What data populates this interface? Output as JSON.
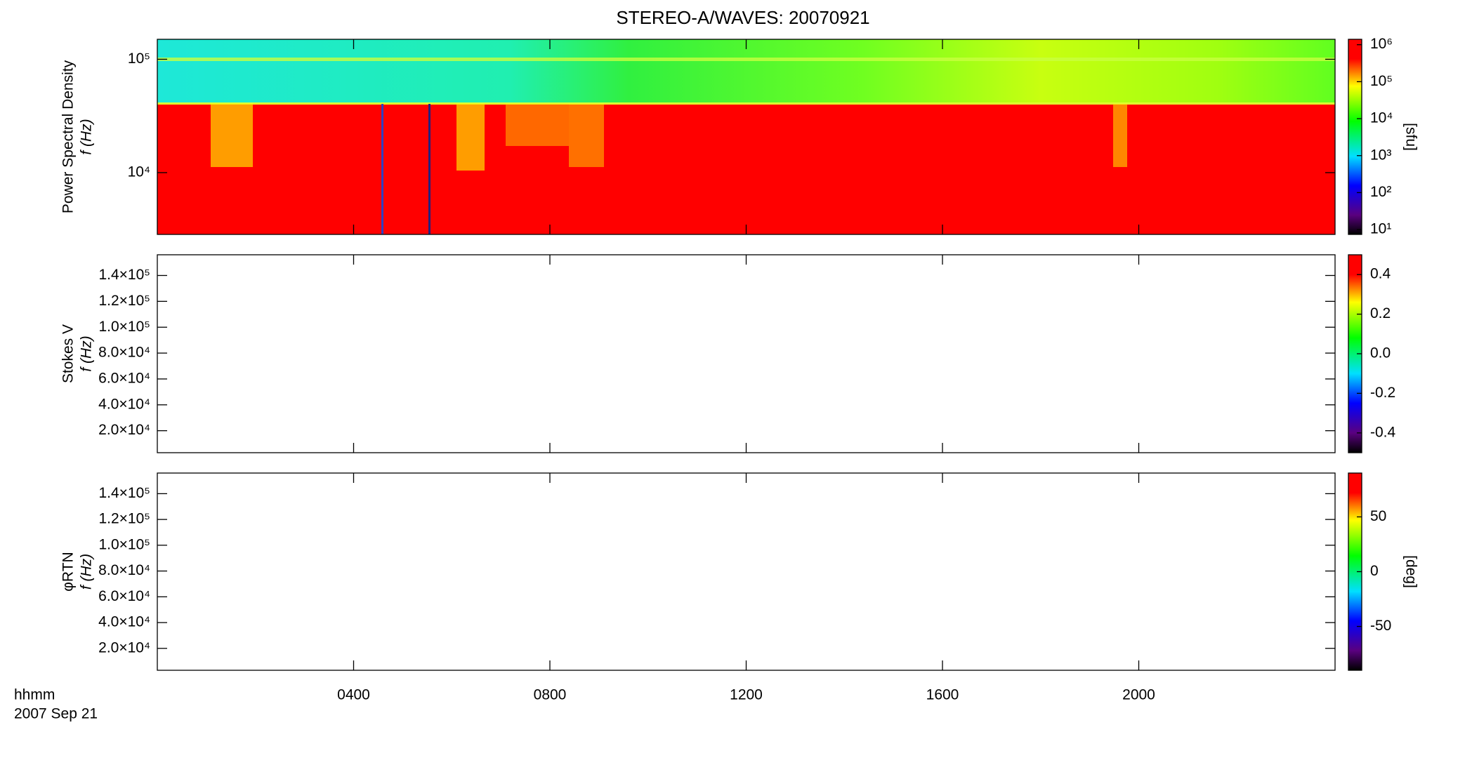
{
  "chart_data": [
    {
      "type": "heatmap",
      "title": "STEREO-A/WAVES: 20070921",
      "ylabel": [
        "Power Spectral Density",
        "f (Hz)"
      ],
      "ylog": true,
      "ylim": [
        2850,
        150000
      ],
      "yticks": [
        {
          "value": 10000,
          "label": "10⁴"
        },
        {
          "value": 100000,
          "label": "10⁵"
        }
      ],
      "colorbar": {
        "label": "[sfu]",
        "log": true,
        "lim": [
          7.4,
          1400000
        ],
        "ticks": [
          {
            "value": 10,
            "label": "10¹"
          },
          {
            "value": 100,
            "label": "10²"
          },
          {
            "value": 1000,
            "label": "10³"
          },
          {
            "value": 10000,
            "label": "10⁴"
          },
          {
            "value": 100000,
            "label": "10⁵"
          },
          {
            "value": 1000000,
            "label": "10⁶"
          }
        ]
      }
    },
    {
      "type": "heatmap",
      "ylabel": [
        "Stokes V",
        "f (Hz)"
      ],
      "ylog": false,
      "ylim": [
        3000,
        156000
      ],
      "yticks": [
        {
          "value": 20000,
          "label": "2.0×10⁴"
        },
        {
          "value": 40000,
          "label": "4.0×10⁴"
        },
        {
          "value": 60000,
          "label": "6.0×10⁴"
        },
        {
          "value": 80000,
          "label": "8.0×10⁴"
        },
        {
          "value": 100000,
          "label": "1.0×10⁵"
        },
        {
          "value": 120000,
          "label": "1.2×10⁵"
        },
        {
          "value": 140000,
          "label": "1.4×10⁵"
        }
      ],
      "colorbar": {
        "log": false,
        "lim": [
          -0.5,
          0.5
        ],
        "ticks": [
          -0.4,
          -0.2,
          {
            "value": 0,
            "label": "0.0"
          },
          0.2,
          0.4
        ]
      }
    },
    {
      "type": "heatmap",
      "ylabel": [
        "φRTN",
        "f (Hz)"
      ],
      "ylog": false,
      "ylim": [
        3000,
        156000
      ],
      "yticks": [
        {
          "value": 20000,
          "label": "2.0×10⁴"
        },
        {
          "value": 40000,
          "label": "4.0×10⁴"
        },
        {
          "value": 60000,
          "label": "6.0×10⁴"
        },
        {
          "value": 80000,
          "label": "8.0×10⁴"
        },
        {
          "value": 100000,
          "label": "1.0×10⁵"
        },
        {
          "value": 120000,
          "label": "1.2×10⁵"
        },
        {
          "value": 140000,
          "label": "1.4×10⁵"
        }
      ],
      "colorbar": {
        "label": "[deg]",
        "log": false,
        "lim": [
          -90,
          90
        ],
        "ticks": [
          -50,
          0,
          50
        ]
      },
      "xlabel": "hhmm",
      "date": "2007 Sep 21",
      "xlim": [
        0,
        24
      ],
      "xticks": [
        {
          "value": 4,
          "label": "0400"
        },
        {
          "value": 8,
          "label": "0800"
        },
        {
          "value": 12,
          "label": "1200"
        },
        {
          "value": 16,
          "label": "1600"
        },
        {
          "value": 20,
          "label": "2000"
        }
      ]
    }
  ]
}
